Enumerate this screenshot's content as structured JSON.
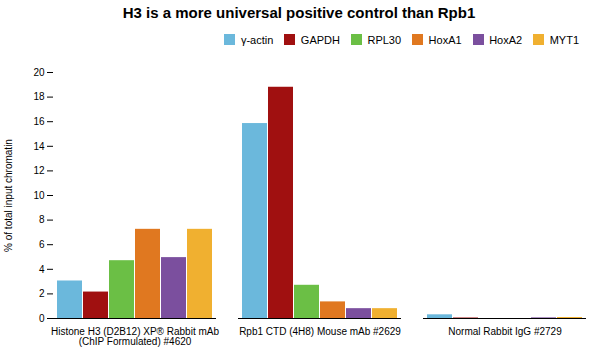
{
  "chart_data": {
    "type": "bar",
    "title": "H3 is a more universal positive control than Rpb1",
    "ylabel": "% of total input chromatin",
    "categories": [
      "Histone H3 (D2B12) XP® Rabbit mAb\n(ChIP Formulated) #4620",
      "Rpb1 CTD (4H8) Mouse mAb #2629",
      "Normal Rabbit IgG #2729"
    ],
    "series": [
      {
        "name": "γ-actin",
        "color": "#6BB8DC",
        "values": [
          3.05,
          15.85,
          0.3
        ]
      },
      {
        "name": "GAPDH",
        "color": "#A01010",
        "values": [
          2.15,
          18.8,
          0.04
        ]
      },
      {
        "name": "RPL30",
        "color": "#6BBF45",
        "values": [
          4.7,
          2.7,
          0.0
        ]
      },
      {
        "name": "HoxA1",
        "color": "#E07820",
        "values": [
          7.25,
          1.35,
          0.0
        ]
      },
      {
        "name": "HoxA2",
        "color": "#7B4F9E",
        "values": [
          4.95,
          0.8,
          0.05
        ]
      },
      {
        "name": "MYT1",
        "color": "#F0B030",
        "values": [
          7.25,
          0.8,
          0.08
        ]
      }
    ],
    "ylim": [
      0,
      20
    ],
    "yticks": [
      0,
      2,
      4,
      6,
      8,
      10,
      12,
      14,
      16,
      18,
      20
    ],
    "grid": false,
    "legend": "upper right"
  }
}
